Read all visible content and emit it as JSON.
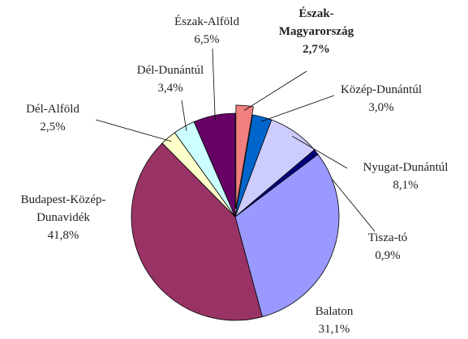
{
  "chart_data": {
    "type": "pie",
    "categories": [
      "Észak-Magyarország",
      "Közép-Dunántúl",
      "Nyugat-Dunántúl",
      "Tisza-tó",
      "Balaton",
      "Budapest-Közép-Dunavidék",
      "Dél-Alföld",
      "Dél-Dunántúl",
      "Észak-Alföld"
    ],
    "values": [
      2.7,
      3.0,
      8.1,
      0.9,
      31.1,
      41.8,
      2.5,
      3.4,
      6.5
    ],
    "value_labels": [
      "2,7%",
      "3,0%",
      "8,1%",
      "0,9%",
      "31,1%",
      "41,8%",
      "2,5%",
      "3,4%",
      "6,5%"
    ],
    "colors": [
      "#f08080",
      "#0066cc",
      "#ccccff",
      "#000080",
      "#9999ff",
      "#993366",
      "#ffffcc",
      "#ccffff",
      "#660066"
    ]
  }
}
